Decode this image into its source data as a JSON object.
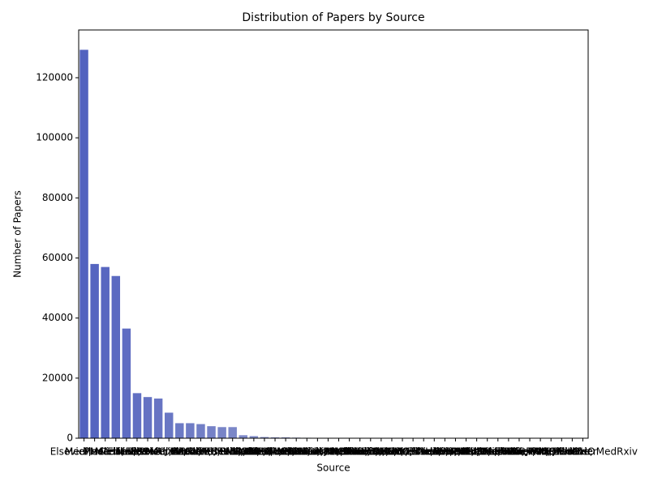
{
  "chart_data": {
    "type": "bar",
    "title": "Distribution of Papers by Source",
    "xlabel": "Source",
    "ylabel": "Number of Papers",
    "categories": [
      "Medline",
      "PMC",
      "Elsevier; Medline; PMC",
      "Medline; PMC",
      "Elsevier",
      "MedRxiv",
      "Medline; PMC; WHO",
      "Elsevier; PMC",
      "ArXiv",
      "Medline; WHO",
      "BioRxiv",
      "Elsevier; Medline; PMC; WHO",
      "Elsevier; Medline",
      "PMC; WHO",
      "MedRxiv; WHO",
      "ArXiv; Elsevier; Medline; PMC",
      "BioRxiv; WHO",
      "Elsevier; WHO",
      "Medline; MedRxiv",
      "ArXiv; Medline; PMC",
      "BioRxiv; Medline; PMC",
      "MedRxiv; Medline; PMC",
      "ArXiv; PMC",
      "BioRxiv; Medline",
      "Elsevier; Medline; WHO",
      "ArXiv; Medline",
      "MedRxiv; PMC",
      "BioRxiv; PMC",
      "ArXiv; WHO",
      "Elsevier; PMC; WHO",
      "MedRxiv; Medline; WHO",
      "BioRxiv; Medline; WHO",
      "ArXiv; Elsevier; PMC",
      "ArXiv; Medline; WHO",
      "BioRxiv; Elsevier; Medline; PMC",
      "MedRxiv; Elsevier",
      "ArXiv; BioRxiv",
      "BioRxiv; MedRxiv",
      "ArXiv; MedRxiv",
      "Elsevier; MedRxiv; WHO",
      "BioRxiv; PMC; WHO",
      "ArXiv; Elsevier; Medline",
      "MedRxiv; PMC; WHO",
      "ArXiv; PMC; WHO",
      "BioRxiv; Elsevier",
      "ArXiv; Elsevier",
      "Elsevier; Medline; MedRxiv",
      "WHO"
    ],
    "values": [
      129300,
      58000,
      57000,
      54000,
      36500,
      15000,
      13700,
      13200,
      8500,
      5000,
      5000,
      4700,
      4000,
      3700,
      3700,
      1000,
      700,
      400,
      300,
      300,
      200,
      150,
      120,
      100,
      90,
      80,
      70,
      60,
      50,
      45,
      40,
      35,
      30,
      25,
      20,
      18,
      15,
      12,
      10,
      8,
      7,
      6,
      5,
      4,
      3,
      2,
      2,
      1
    ],
    "color_range": [
      "#5262bf",
      "#dcdddd"
    ],
    "ylim": [
      0,
      135900
    ],
    "yticks": [
      0,
      20000,
      40000,
      60000,
      80000,
      100000,
      120000
    ],
    "grid": false
  }
}
